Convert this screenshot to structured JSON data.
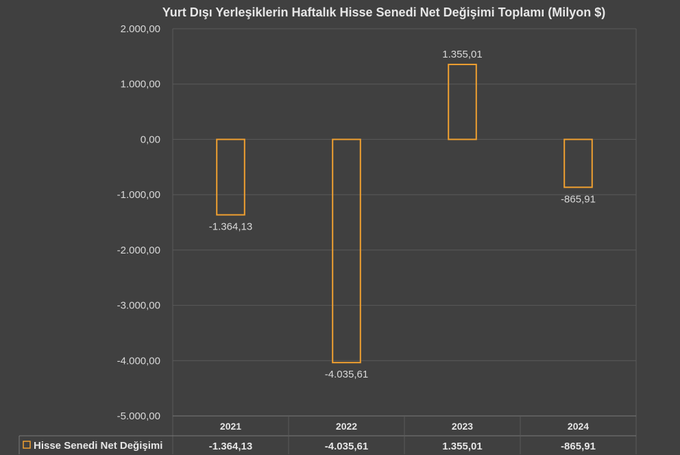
{
  "chart_data": {
    "type": "bar",
    "title": "Yurt Dışı Yerleşiklerin Haftalık Hisse Senedi Net Değişimi Toplamı (Milyon $)",
    "categories": [
      "2021",
      "2022",
      "2023",
      "2024"
    ],
    "series": [
      {
        "name": "Hisse Senedi Net Değişimi",
        "values": [
          -1364.13,
          -4035.61,
          1355.01,
          -865.91
        ],
        "labels": [
          "-1.364,13",
          "-4.035,61",
          "1.355,01",
          "-865,91"
        ]
      }
    ],
    "ylim": [
      -5000,
      2000
    ],
    "yticks": [
      2000,
      1000,
      0,
      -1000,
      -2000,
      -3000,
      -4000,
      -5000
    ],
    "ytick_labels": [
      "2.000,00",
      "1.000,00",
      "0,00",
      "-1.000,00",
      "-2.000,00",
      "-3.000,00",
      "-4.000,00",
      "-5.000,00"
    ],
    "grid": true,
    "legend": "data-table",
    "colors": {
      "background": "#404040",
      "bar_outline": "#f0a030",
      "gridline": "#5a5a5a"
    }
  }
}
